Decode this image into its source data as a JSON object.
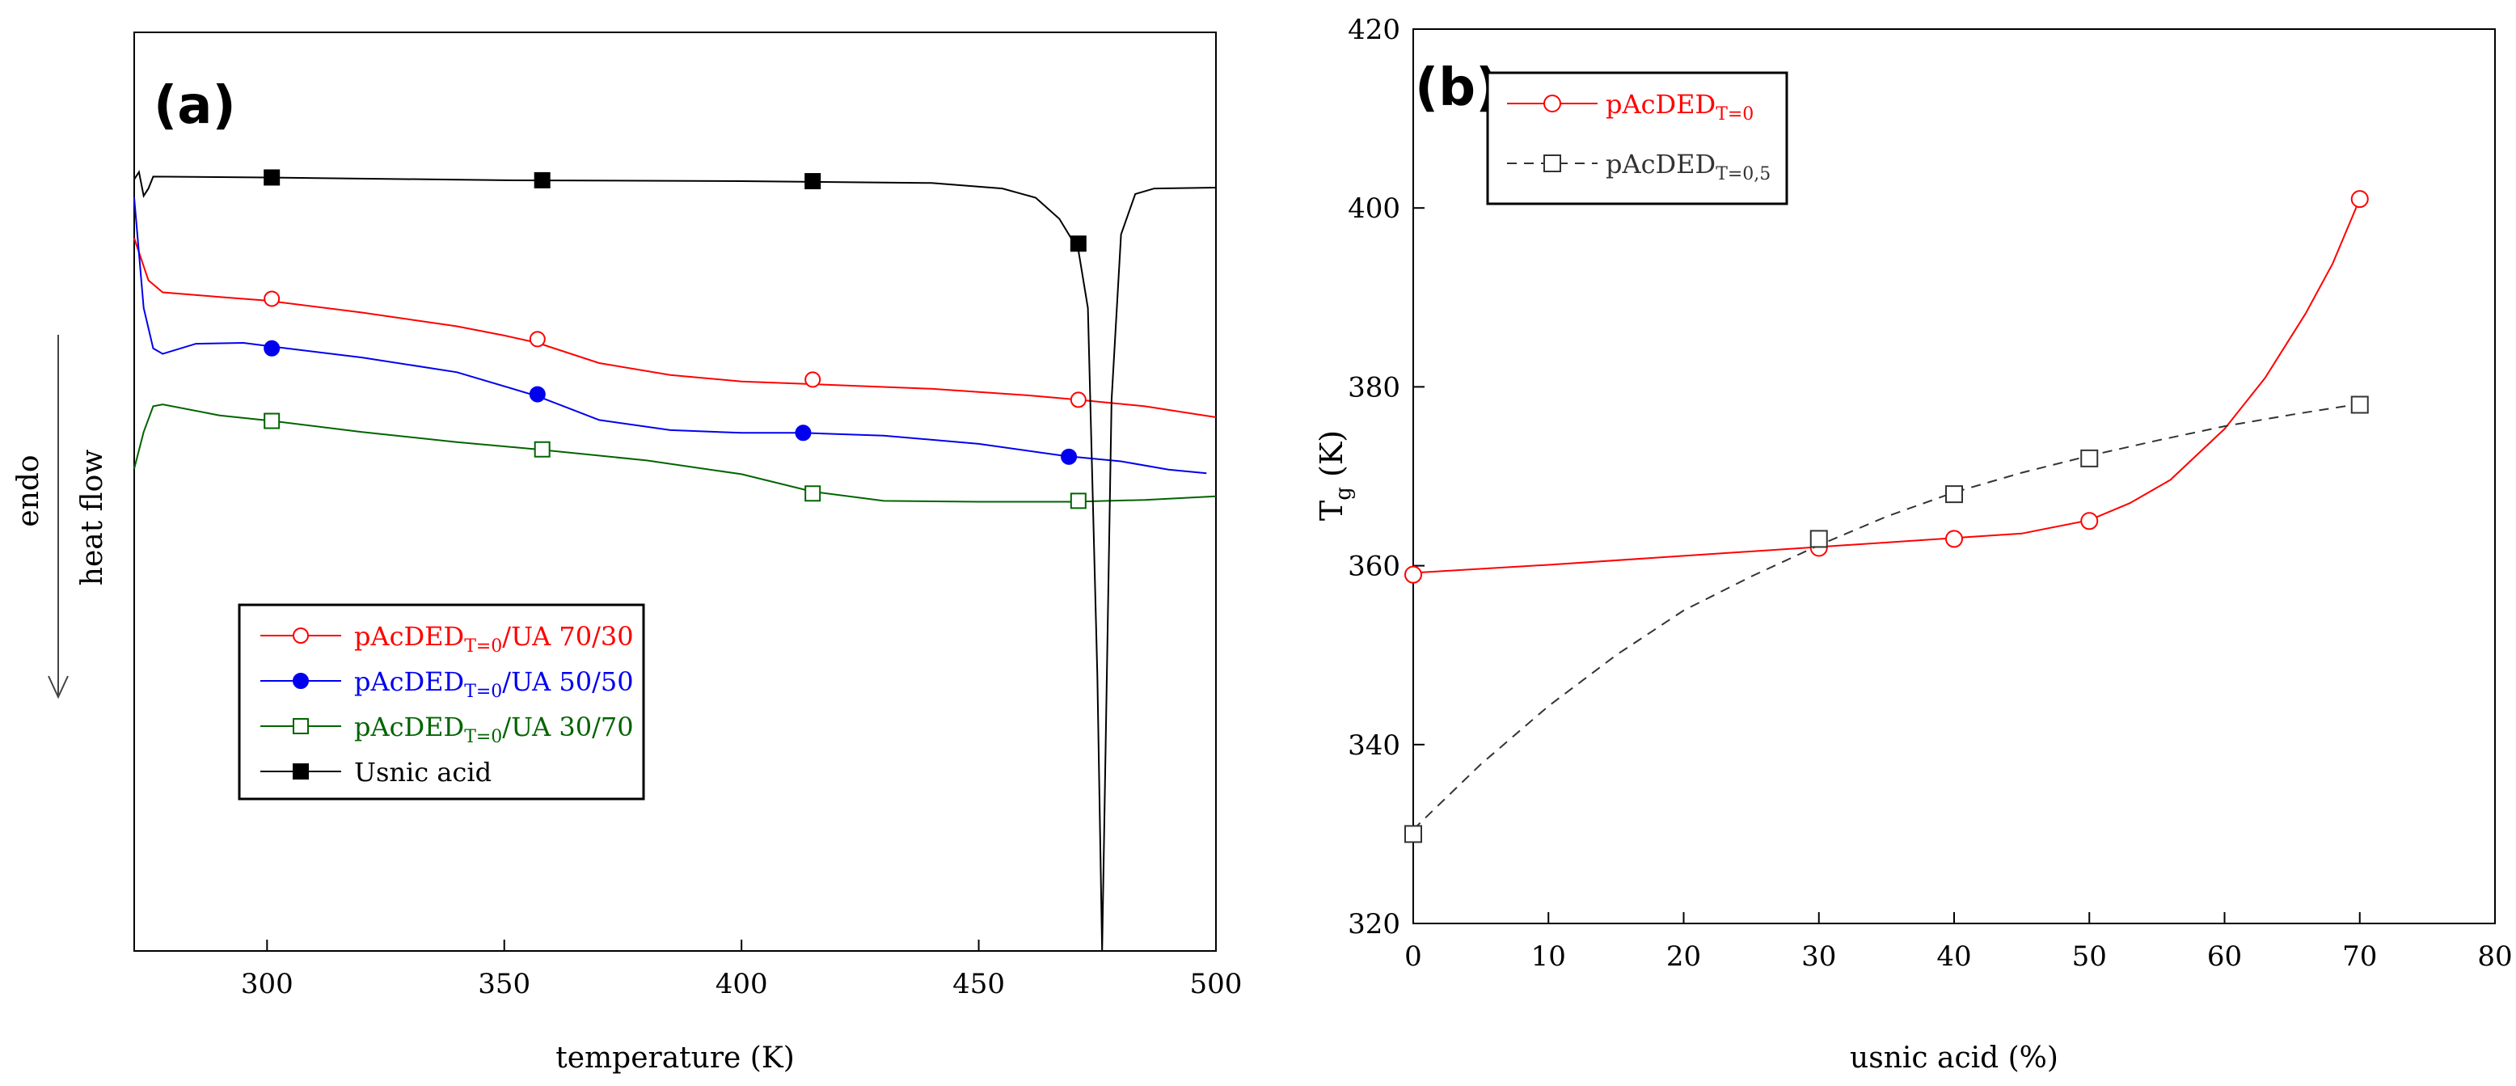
{
  "chart_data": [
    {
      "id": "a",
      "type": "line",
      "panel_label": "(a)",
      "xlabel": "temperature (K)",
      "ylabel_left": "endo",
      "ylabel_right": "heat flow",
      "xlim": [
        272,
        500
      ],
      "ylim": [
        0,
        100
      ],
      "xticks": [
        300,
        350,
        400,
        450,
        500
      ],
      "y_tick_labels_shown": false,
      "legend_position": "lower-left",
      "series": [
        {
          "name_main": "pAcDED",
          "name_sub": "T=0",
          "name_tail": "/UA 70/30",
          "color": "#ff0000",
          "marker": "open-circle",
          "curve": [
            [
              272,
              77.6
            ],
            [
              275,
              73.0
            ],
            [
              278,
              71.7
            ],
            [
              290,
              71.2
            ],
            [
              300,
              70.8
            ],
            [
              320,
              69.5
            ],
            [
              340,
              68.0
            ],
            [
              350,
              67.0
            ],
            [
              357,
              66.2
            ],
            [
              370,
              64.0
            ],
            [
              385,
              62.7
            ],
            [
              400,
              62.0
            ],
            [
              420,
              61.6
            ],
            [
              440,
              61.2
            ],
            [
              460,
              60.5
            ],
            [
              471,
              60.0
            ],
            [
              485,
              59.3
            ],
            [
              500,
              58.1
            ]
          ],
          "markers": [
            [
              301,
              71.0
            ],
            [
              357,
              66.6
            ],
            [
              415,
              62.2
            ],
            [
              471,
              60.0
            ]
          ]
        },
        {
          "name_main": "pAcDED",
          "name_sub": "T=0",
          "name_tail": "/UA 50/50",
          "color": "#0000ee",
          "marker": "filled-circle",
          "curve": [
            [
              272,
              82.0
            ],
            [
              274,
              70.0
            ],
            [
              276,
              65.6
            ],
            [
              278,
              65.0
            ],
            [
              285,
              66.1
            ],
            [
              295,
              66.2
            ],
            [
              301,
              65.8
            ],
            [
              320,
              64.6
            ],
            [
              340,
              63.0
            ],
            [
              357,
              60.4
            ],
            [
              370,
              57.8
            ],
            [
              385,
              56.7
            ],
            [
              400,
              56.4
            ],
            [
              413,
              56.4
            ],
            [
              430,
              56.1
            ],
            [
              450,
              55.2
            ],
            [
              468,
              53.9
            ],
            [
              480,
              53.3
            ],
            [
              490,
              52.4
            ],
            [
              498,
              52.0
            ]
          ],
          "markers": [
            [
              301,
              65.6
            ],
            [
              357,
              60.6
            ],
            [
              413,
              56.4
            ],
            [
              469,
              53.8
            ]
          ]
        },
        {
          "name_main": "pAcDED",
          "name_sub": "T=0",
          "name_tail": "/UA 30/70",
          "color": "#006400",
          "marker": "open-square",
          "curve": [
            [
              272,
              52.5
            ],
            [
              274,
              56.5
            ],
            [
              276,
              59.3
            ],
            [
              278,
              59.5
            ],
            [
              290,
              58.3
            ],
            [
              301,
              57.7
            ],
            [
              320,
              56.5
            ],
            [
              340,
              55.4
            ],
            [
              357,
              54.6
            ],
            [
              380,
              53.4
            ],
            [
              400,
              51.9
            ],
            [
              415,
              50.0
            ],
            [
              430,
              49.0
            ],
            [
              450,
              48.9
            ],
            [
              470,
              48.9
            ],
            [
              485,
              49.1
            ],
            [
              500,
              49.5
            ]
          ],
          "markers": [
            [
              301,
              57.7
            ],
            [
              358,
              54.6
            ],
            [
              415,
              49.8
            ],
            [
              471,
              49.0
            ]
          ]
        },
        {
          "name_main": "Usnic acid",
          "name_sub": "",
          "name_tail": "",
          "color": "#000000",
          "marker": "filled-square",
          "curve": [
            [
              272,
              84.0
            ],
            [
              273,
              84.8
            ],
            [
              274,
              82.2
            ],
            [
              275,
              83.0
            ],
            [
              276,
              84.3
            ],
            [
              300,
              84.2
            ],
            [
              350,
              83.9
            ],
            [
              400,
              83.8
            ],
            [
              440,
              83.6
            ],
            [
              455,
              83.0
            ],
            [
              462,
              82.0
            ],
            [
              467,
              79.7
            ],
            [
              471,
              76.3
            ],
            [
              473,
              70.0
            ],
            [
              475,
              30.0
            ],
            [
              476,
              0.0
            ],
            [
              478,
              60.0
            ],
            [
              480,
              78.0
            ],
            [
              483,
              82.4
            ],
            [
              487,
              83.0
            ],
            [
              500,
              83.1
            ]
          ],
          "markers": [
            [
              301,
              84.2
            ],
            [
              358,
              83.9
            ],
            [
              415,
              83.8
            ],
            [
              471,
              77.0
            ]
          ]
        }
      ]
    },
    {
      "id": "b",
      "type": "line",
      "panel_label": "(b)",
      "xlabel": "usnic acid (%)",
      "ylabel_main": "T",
      "ylabel_sub": "g",
      "ylabel_tail": " (K)",
      "xlim": [
        0,
        80
      ],
      "ylim": [
        320,
        420
      ],
      "xticks": [
        0,
        10,
        20,
        30,
        40,
        50,
        60,
        70,
        80
      ],
      "yticks": [
        320,
        340,
        360,
        380,
        400,
        420
      ],
      "legend_position": "top-left",
      "series": [
        {
          "name_main": "pAcDED",
          "name_sub": "T=0",
          "color": "#ff0000",
          "line_style": "solid",
          "marker": "open-circle",
          "x": [
            0,
            30,
            40,
            50,
            70
          ],
          "y": [
            359,
            362,
            363,
            365,
            401
          ],
          "curve": [
            [
              0,
              359.2
            ],
            [
              10,
              360.1
            ],
            [
              20,
              361.1
            ],
            [
              30,
              362.1
            ],
            [
              40,
              363.1
            ],
            [
              45,
              363.6
            ],
            [
              50,
              365.1
            ],
            [
              53,
              367.0
            ],
            [
              56,
              369.6
            ],
            [
              60,
              375.3
            ],
            [
              63,
              381.0
            ],
            [
              66,
              388.2
            ],
            [
              68,
              393.8
            ],
            [
              70,
              401.0
            ]
          ]
        },
        {
          "name_main": "pAcDED",
          "name_sub": "T=0,5",
          "color": "#333333",
          "line_style": "dashed",
          "marker": "open-square",
          "x": [
            0,
            30,
            40,
            50,
            70
          ],
          "y": [
            330,
            363,
            368,
            372,
            378
          ],
          "curve": [
            [
              0,
              330.5
            ],
            [
              5,
              337.8
            ],
            [
              10,
              344.3
            ],
            [
              15,
              350.0
            ],
            [
              20,
              355.0
            ],
            [
              25,
              358.8
            ],
            [
              30,
              362.3
            ],
            [
              35,
              365.5
            ],
            [
              40,
              368.2
            ],
            [
              45,
              370.4
            ],
            [
              50,
              372.3
            ],
            [
              55,
              374.0
            ],
            [
              60,
              375.6
            ],
            [
              65,
              376.9
            ],
            [
              70,
              378.1
            ]
          ]
        }
      ]
    }
  ]
}
